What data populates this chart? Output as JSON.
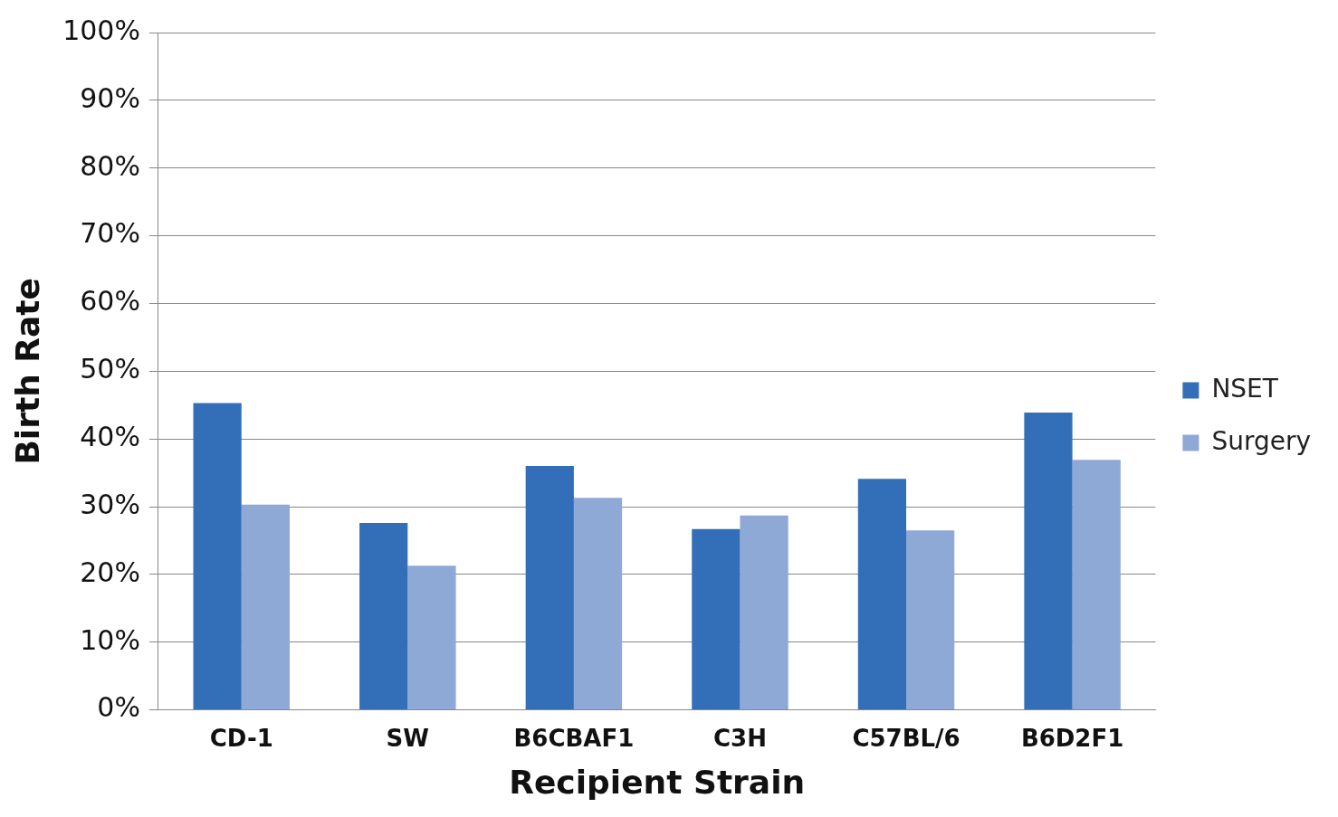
{
  "chart_data": {
    "type": "bar",
    "xlabel": "Recipient Strain",
    "ylabel": "Birth Rate",
    "categories": [
      "CD-1",
      "SW",
      "B6CBAF1",
      "C3H",
      "C57BL/6",
      "B6D2F1"
    ],
    "series": [
      {
        "name": "NSET",
        "color": "#336fb8",
        "values": [
          45.3,
          27.6,
          36.0,
          26.7,
          34.1,
          43.9
        ]
      },
      {
        "name": "Surgery",
        "color": "#8fa9d6",
        "values": [
          30.3,
          21.3,
          31.3,
          28.7,
          26.5,
          36.9
        ]
      }
    ],
    "ylim": [
      0,
      100
    ],
    "yticks": [
      {
        "value": 0,
        "label": "0%"
      },
      {
        "value": 10,
        "label": "10%"
      },
      {
        "value": 20,
        "label": "20%"
      },
      {
        "value": 30,
        "label": "30%"
      },
      {
        "value": 40,
        "label": "40%"
      },
      {
        "value": 50,
        "label": "50%"
      },
      {
        "value": 60,
        "label": "60%"
      },
      {
        "value": 70,
        "label": "70%"
      },
      {
        "value": 80,
        "label": "80%"
      },
      {
        "value": 90,
        "label": "90%"
      },
      {
        "value": 100,
        "label": "100%"
      }
    ],
    "grid": "y",
    "legend": "right"
  }
}
